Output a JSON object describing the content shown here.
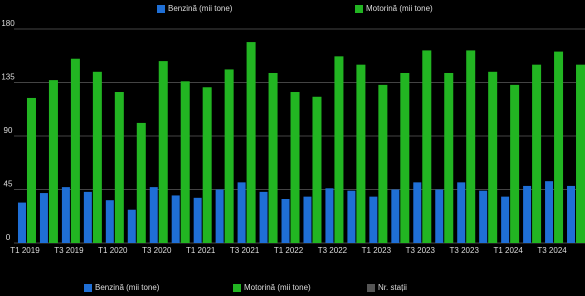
{
  "chart_data": {
    "type": "bar",
    "categories": [
      "T1 2019",
      null,
      "T3 2019",
      null,
      "T1 2020",
      null,
      "T3 2020",
      null,
      "T1 2021",
      null,
      "T3 2021",
      null,
      "T1 2022",
      null,
      "T3 2022",
      null,
      "T1 2023",
      null,
      "T3 2023",
      null,
      "T3 2023",
      null,
      "T1 2024",
      null,
      "T3 2024",
      null
    ],
    "series": [
      {
        "name": "Benzină (mii tone)",
        "color": "#1f6fd6",
        "values": [
          34,
          42,
          47,
          43,
          36,
          28,
          47,
          40,
          38,
          45,
          51,
          43,
          37,
          39,
          46,
          44,
          39,
          45,
          51,
          45,
          51,
          44,
          39,
          48,
          52,
          48
        ]
      },
      {
        "name": "Motorină (mii tone)",
        "color": "#22b522",
        "values": [
          122,
          137,
          155,
          144,
          127,
          101,
          153,
          136,
          131,
          146,
          169,
          143,
          127,
          123,
          157,
          150,
          133,
          143,
          162,
          143,
          162,
          144,
          133,
          150,
          161,
          150
        ]
      },
      {
        "name": "Nr. stații",
        "color": "#555555",
        "values": [
          null,
          null,
          null,
          null,
          null,
          null,
          null,
          null,
          null,
          null,
          null,
          null,
          null,
          null,
          null,
          null,
          null,
          null,
          null,
          null,
          null,
          null,
          null,
          null,
          null,
          null
        ]
      }
    ],
    "ylim": [
      0,
      180
    ],
    "yticks": [
      0,
      45,
      90,
      135,
      180
    ],
    "grid": true
  }
}
